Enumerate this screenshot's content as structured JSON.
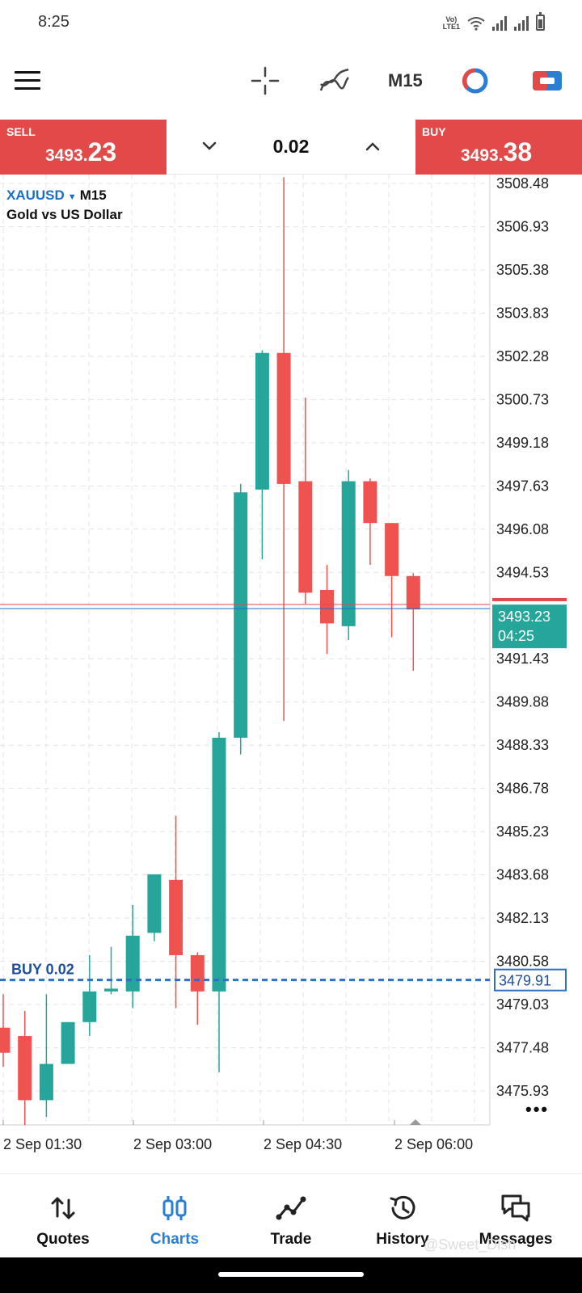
{
  "status_bar": {
    "time": "8:25",
    "network_label": "Vo\nLTE1",
    "icons": [
      "volte-icon",
      "wifi-icon",
      "signal-icon",
      "signal-icon",
      "battery-icon"
    ]
  },
  "toolbar": {
    "timeframe": "M15",
    "icons": [
      "menu-icon",
      "crosshair-icon",
      "indicator-icon",
      "objects-icon",
      "one-click-trading-icon"
    ]
  },
  "trade_panel": {
    "sell_label": "SELL",
    "sell_price_prefix": "3493.",
    "sell_price_suffix": "23",
    "buy_label": "BUY",
    "buy_price_prefix": "3493.",
    "buy_price_suffix": "38",
    "lot_value": "0.02"
  },
  "chart": {
    "symbol": "XAUUSD",
    "timeframe": "M15",
    "description": "Gold vs US Dollar",
    "bid_price_label": "3493.23",
    "countdown": "04:25",
    "position_label": "BUY 0.02",
    "position_price_label": "3479.91",
    "colors": {
      "bull": "#26a69a",
      "bear": "#ef5350",
      "bid_line": "#1e6fc4",
      "ask_line": "#e24a4a",
      "position_line": "#2f6ec2"
    }
  },
  "chart_data": {
    "type": "candlestick",
    "symbol": "XAUUSD",
    "timeframe": "M15",
    "y_ticks": [
      "3508.48",
      "3506.93",
      "3505.38",
      "3503.83",
      "3502.28",
      "3500.73",
      "3499.18",
      "3497.63",
      "3496.08",
      "3494.53",
      "3491.43",
      "3489.88",
      "3488.33",
      "3486.78",
      "3485.23",
      "3483.68",
      "3482.13",
      "3480.58",
      "3479.03",
      "3477.48",
      "3475.93"
    ],
    "ylim": [
      3474.9,
      3509.1
    ],
    "x_ticks": [
      "2 Sep 01:30",
      "2 Sep 03:00",
      "2 Sep 04:30",
      "2 Sep 06:00"
    ],
    "candles": [
      {
        "o": 3478.2,
        "h": 3479.4,
        "l": 3476.8,
        "c": 3477.3
      },
      {
        "o": 3477.9,
        "h": 3478.8,
        "l": 3474.7,
        "c": 3475.6
      },
      {
        "o": 3475.6,
        "h": 3479.4,
        "l": 3475.0,
        "c": 3476.9
      },
      {
        "o": 3476.9,
        "h": 3478.4,
        "l": 3476.9,
        "c": 3478.4
      },
      {
        "o": 3478.4,
        "h": 3480.8,
        "l": 3477.9,
        "c": 3479.5
      },
      {
        "o": 3479.5,
        "h": 3481.1,
        "l": 3479.4,
        "c": 3479.6
      },
      {
        "o": 3479.5,
        "h": 3482.6,
        "l": 3478.9,
        "c": 3481.5
      },
      {
        "o": 3481.6,
        "h": 3483.7,
        "l": 3481.3,
        "c": 3483.7
      },
      {
        "o": 3483.5,
        "h": 3485.8,
        "l": 3478.9,
        "c": 3480.8
      },
      {
        "o": 3480.8,
        "h": 3480.9,
        "l": 3478.3,
        "c": 3479.5
      },
      {
        "o": 3479.5,
        "h": 3488.8,
        "l": 3476.6,
        "c": 3488.6
      },
      {
        "o": 3488.6,
        "h": 3497.7,
        "l": 3488.0,
        "c": 3497.4
      },
      {
        "o": 3497.5,
        "h": 3502.5,
        "l": 3495.0,
        "c": 3502.4
      },
      {
        "o": 3502.4,
        "h": 3508.7,
        "l": 3489.2,
        "c": 3497.7
      },
      {
        "o": 3497.8,
        "h": 3500.8,
        "l": 3493.4,
        "c": 3493.8
      },
      {
        "o": 3493.9,
        "h": 3494.8,
        "l": 3491.6,
        "c": 3492.7
      },
      {
        "o": 3492.6,
        "h": 3498.2,
        "l": 3492.1,
        "c": 3497.8
      },
      {
        "o": 3497.8,
        "h": 3497.9,
        "l": 3494.8,
        "c": 3496.3
      },
      {
        "o": 3496.3,
        "h": 3496.3,
        "l": 3492.2,
        "c": 3494.4
      },
      {
        "o": 3494.4,
        "h": 3494.5,
        "l": 3491.0,
        "c": 3493.2
      }
    ],
    "bid": 3493.23,
    "ask": 3493.38,
    "position": {
      "side": "BUY",
      "volume": 0.02,
      "price": 3479.91
    }
  },
  "bottom_nav": {
    "items": [
      {
        "label": "Quotes",
        "icon": "quotes-icon"
      },
      {
        "label": "Charts",
        "icon": "charts-icon"
      },
      {
        "label": "Trade",
        "icon": "trade-icon"
      },
      {
        "label": "History",
        "icon": "history-icon"
      },
      {
        "label": "Messages",
        "icon": "messages-icon"
      }
    ],
    "active": "Charts"
  },
  "watermark": "@Sweet_Dish"
}
